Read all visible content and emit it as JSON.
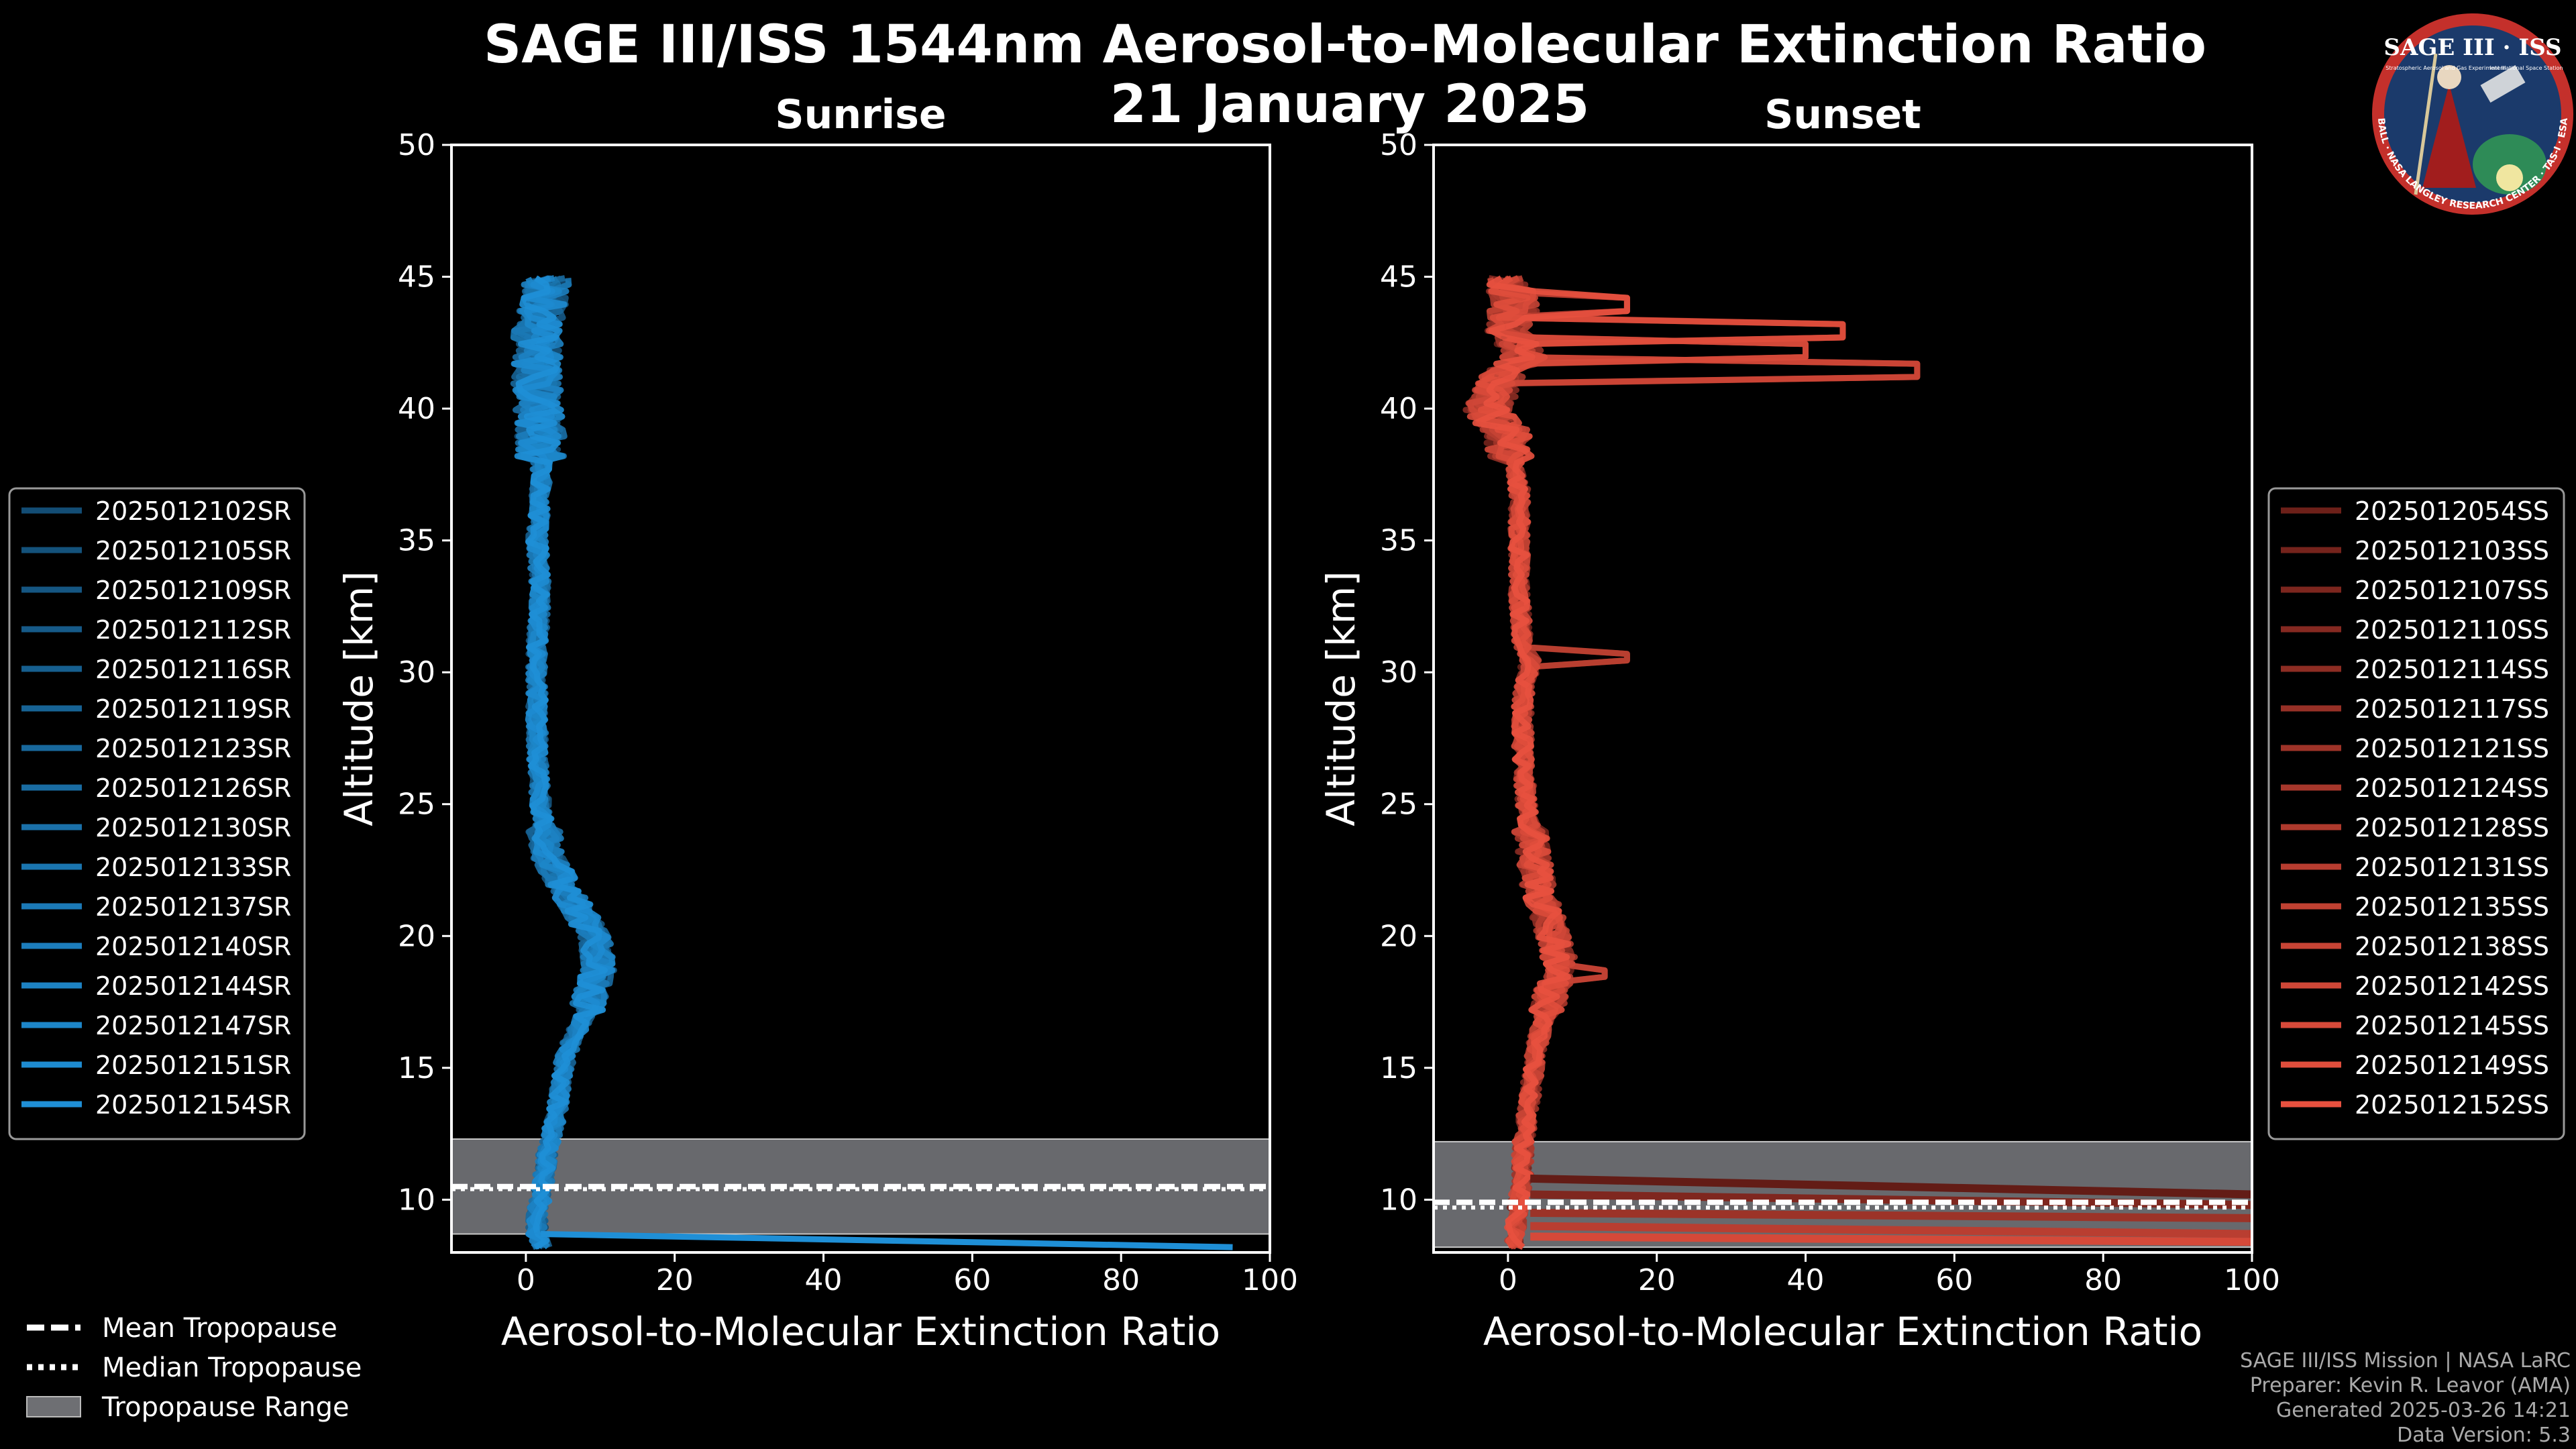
{
  "title": "SAGE III/ISS 1544nm Aerosol-to-Molecular Extinction Ratio",
  "date": "21 January 2025",
  "logo": {
    "main_text": "SAGE III · ISS",
    "sub_text_left": "Stratospheric Aerosol and Gas Experiment III",
    "sub_text_right": "International Space Station",
    "ring_text": "BALL · NASA LANGLEY RESEARCH CENTER · TAS-I · ESA"
  },
  "footer": {
    "line1": "SAGE III/ISS Mission | NASA LaRC",
    "line2": "Preparer: Kevin R. Leavor (AMA)",
    "line3": "Generated 2025-03-26 14:21",
    "line4": "Data Version: 5.3"
  },
  "colors": {
    "sunrise": "#1f8fd6",
    "sunset": "#e8513f",
    "background": "#000000",
    "tropopause_range": "#6e6f73"
  },
  "bottom_legend": [
    {
      "label": "Mean Tropopause",
      "style": "dashed"
    },
    {
      "label": "Median Tropopause",
      "style": "dotted"
    },
    {
      "label": "Tropopause Range",
      "style": "patch"
    }
  ],
  "chart_data": [
    {
      "type": "line",
      "title": "Sunrise",
      "xlabel": "Aerosol-to-Molecular Extinction Ratio",
      "ylabel": "Altitude [km]",
      "xlim": [
        -10,
        100
      ],
      "ylim": [
        8,
        50
      ],
      "xticks": [
        0,
        20,
        40,
        60,
        80,
        100
      ],
      "yticks": [
        10,
        15,
        20,
        25,
        30,
        35,
        40,
        45,
        50
      ],
      "tropopause": {
        "mean": 10.5,
        "median": 10.4,
        "range": [
          8.7,
          12.3
        ]
      },
      "profile_key": {
        "altitude": [
          8.2,
          8.7,
          9.5,
          10,
          11,
          12,
          13,
          14,
          15,
          16,
          17,
          18,
          19,
          20,
          21,
          22,
          23,
          24,
          25,
          27,
          29,
          31,
          33,
          35,
          37,
          39,
          41,
          43,
          45
        ],
        "ratio": [
          2,
          1.5,
          1.5,
          2,
          2.5,
          3,
          4,
          4.5,
          5,
          6,
          8,
          9,
          10,
          9,
          7,
          5,
          3,
          2.5,
          2,
          1.5,
          1.5,
          1.5,
          2,
          1.5,
          2,
          2,
          1.5,
          1.5,
          3
        ]
      },
      "surface_spike": {
        "altitude": [
          8.7,
          8.2
        ],
        "ratio": [
          2,
          95
        ]
      },
      "series": [
        {
          "name": "2025012102SR"
        },
        {
          "name": "2025012105SR"
        },
        {
          "name": "2025012109SR"
        },
        {
          "name": "2025012112SR"
        },
        {
          "name": "2025012116SR"
        },
        {
          "name": "2025012119SR"
        },
        {
          "name": "2025012123SR"
        },
        {
          "name": "2025012126SR"
        },
        {
          "name": "2025012130SR"
        },
        {
          "name": "2025012133SR"
        },
        {
          "name": "2025012137SR"
        },
        {
          "name": "2025012140SR"
        },
        {
          "name": "2025012144SR"
        },
        {
          "name": "2025012147SR"
        },
        {
          "name": "2025012151SR"
        },
        {
          "name": "2025012154SR"
        }
      ],
      "legend_position": "left"
    },
    {
      "type": "line",
      "title": "Sunset",
      "xlabel": "Aerosol-to-Molecular Extinction Ratio",
      "ylabel": "Altitude [km]",
      "xlim": [
        -10,
        100
      ],
      "ylim": [
        8,
        50
      ],
      "xticks": [
        0,
        20,
        40,
        60,
        80,
        100
      ],
      "yticks": [
        10,
        15,
        20,
        25,
        30,
        35,
        40,
        45,
        50
      ],
      "tropopause": {
        "mean": 9.9,
        "median": 9.7,
        "range": [
          8.2,
          12.2
        ]
      },
      "profile_key": {
        "altitude": [
          8.2,
          9,
          10,
          11,
          12,
          13,
          14,
          15,
          16,
          17,
          18,
          19,
          20,
          21,
          22,
          23,
          24,
          25,
          27,
          29,
          30.5,
          31,
          33,
          35,
          37,
          39,
          40,
          41.5,
          42,
          43,
          44,
          45
        ],
        "ratio": [
          1,
          1,
          1.5,
          2,
          2,
          2.5,
          3,
          3.5,
          4,
          5,
          6,
          7,
          6,
          5,
          4,
          3.5,
          3,
          2.5,
          2,
          2,
          3,
          2,
          1.5,
          1.5,
          1.5,
          0,
          -3,
          0,
          2,
          0,
          1,
          0
        ]
      },
      "features": [
        {
          "altitude": 41.5,
          "ratio": 55
        },
        {
          "altitude": 42.2,
          "ratio": 40
        },
        {
          "altitude": 43,
          "ratio": 45
        },
        {
          "altitude": 44,
          "ratio": 16
        },
        {
          "altitude": 30.5,
          "ratio": 16
        },
        {
          "altitude": 18.5,
          "ratio": 13
        }
      ],
      "low_level_lines": [
        {
          "altitude": [
            10.8,
            10.2
          ],
          "ratio": [
            3,
            100
          ]
        },
        {
          "altitude": [
            10.2,
            9.8
          ],
          "ratio": [
            3,
            100
          ]
        },
        {
          "altitude": [
            9.5,
            9.3
          ],
          "ratio": [
            3,
            100
          ]
        },
        {
          "altitude": [
            9.0,
            8.7
          ],
          "ratio": [
            3,
            100
          ]
        },
        {
          "altitude": [
            8.6,
            8.4
          ],
          "ratio": [
            3,
            100
          ]
        }
      ],
      "series": [
        {
          "name": "2025012054SS"
        },
        {
          "name": "2025012103SS"
        },
        {
          "name": "2025012107SS"
        },
        {
          "name": "2025012110SS"
        },
        {
          "name": "2025012114SS"
        },
        {
          "name": "2025012117SS"
        },
        {
          "name": "2025012121SS"
        },
        {
          "name": "2025012124SS"
        },
        {
          "name": "2025012128SS"
        },
        {
          "name": "2025012131SS"
        },
        {
          "name": "2025012135SS"
        },
        {
          "name": "2025012138SS"
        },
        {
          "name": "2025012142SS"
        },
        {
          "name": "2025012145SS"
        },
        {
          "name": "2025012149SS"
        },
        {
          "name": "2025012152SS"
        }
      ],
      "legend_position": "right"
    }
  ]
}
